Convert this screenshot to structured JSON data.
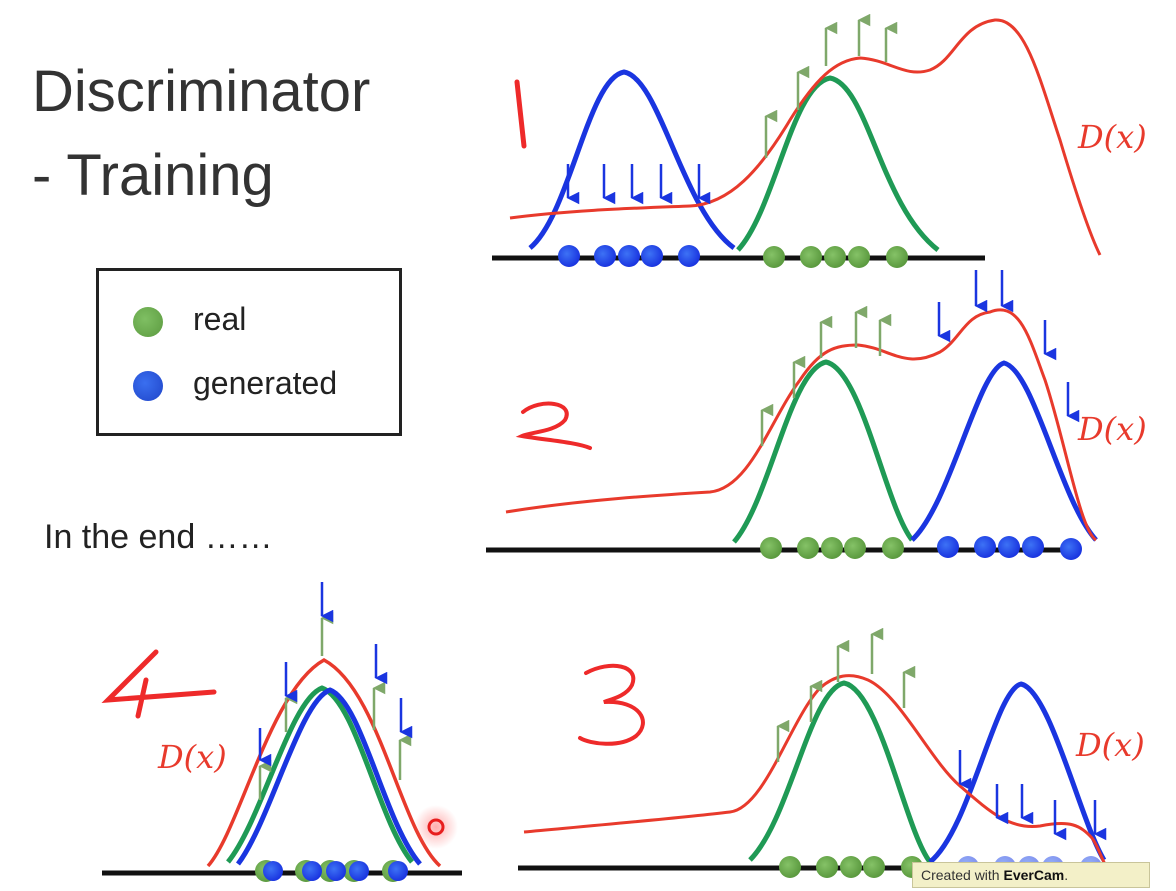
{
  "slide": {
    "title_line1": "Discriminator",
    "title_line2": "- Training",
    "legend": {
      "real_label": "real",
      "generated_label": "generated"
    },
    "end_text": "In the end ……",
    "watermark": {
      "prefix": "Created with ",
      "brand": "EverCam",
      "suffix": "."
    }
  },
  "panels": [
    {
      "id": "panel-1",
      "step_label": "1",
      "curve_label": "D(x)"
    },
    {
      "id": "panel-2",
      "step_label": "2",
      "curve_label": "D(x)"
    },
    {
      "id": "panel-3",
      "step_label": "3",
      "curve_label": "D(x)"
    },
    {
      "id": "panel-4",
      "step_label": "4",
      "curve_label": "D(x)"
    }
  ],
  "colors": {
    "real": "#5b9a3f",
    "real_curve": "#1f9a55",
    "generated": "#1a35e0",
    "discriminator": "#e83a2c",
    "handwriting": "#ee2a2a",
    "up_arrow": "#7fa86a",
    "down_arrow": "#1a35e0",
    "axis": "#111111"
  }
}
